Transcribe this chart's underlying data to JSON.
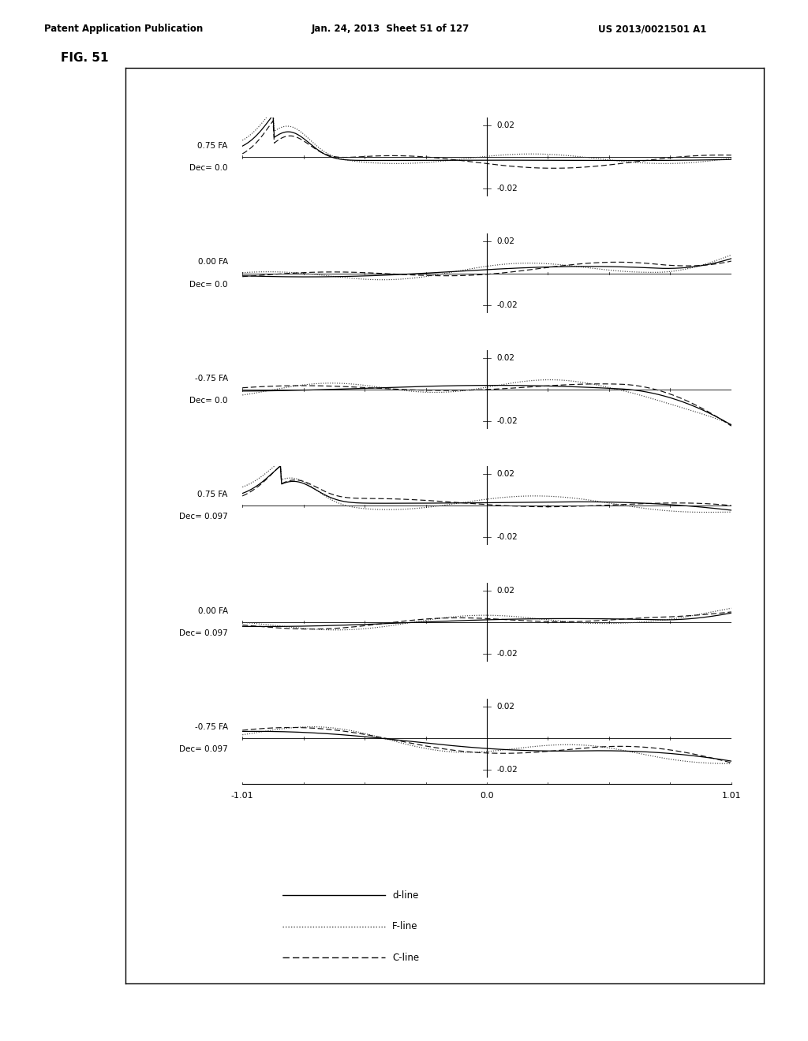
{
  "header_left": "Patent Application Publication",
  "header_mid": "Jan. 24, 2013  Sheet 51 of 127",
  "header_right": "US 2013/0021501 A1",
  "fig_label": "FIG. 51",
  "subplots": [
    {
      "fa": "0.75 FA",
      "dec": "Dec= 0.0"
    },
    {
      "fa": "0.00 FA",
      "dec": "Dec= 0.0"
    },
    {
      "fa": "-0.75 FA",
      "dec": "Dec= 0.0"
    },
    {
      "fa": "0.75 FA",
      "dec": "Dec= 0.097"
    },
    {
      "fa": "0.00 FA",
      "dec": "Dec= 0.097"
    },
    {
      "fa": "-0.75 FA",
      "dec": "Dec= 0.097"
    }
  ],
  "xlim": [
    -1.01,
    1.01
  ],
  "ylim": [
    -0.025,
    0.025
  ],
  "legend": [
    {
      "label": "d-line",
      "color": "#000000"
    },
    {
      "label": "F-line",
      "color": "#444444"
    },
    {
      "label": "C-line",
      "color": "#111111"
    }
  ],
  "bg_color": "#ffffff"
}
